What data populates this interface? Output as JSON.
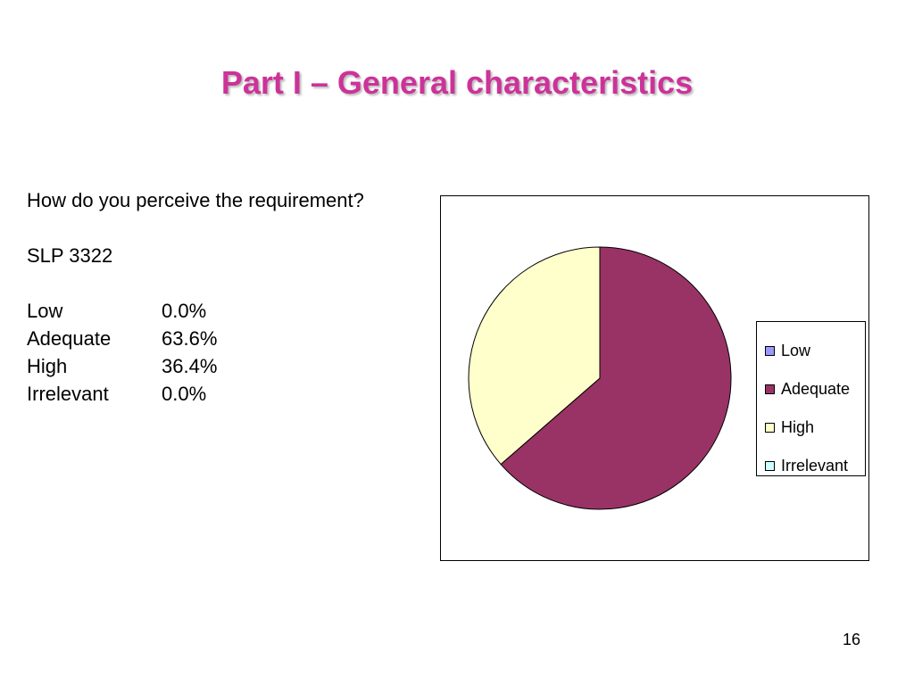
{
  "slide": {
    "title": "Part I – General characteristics",
    "question": "How do you perceive the requirement?",
    "code": "SLP 3322",
    "rows": [
      {
        "label": "Low",
        "value": "0.0%"
      },
      {
        "label": "Adequate",
        "value": "63.6%"
      },
      {
        "label": "High",
        "value": "36.4%"
      },
      {
        "label": "Irrelevant",
        "value": "0.0%"
      }
    ],
    "page_number": "16"
  },
  "colors": {
    "title": "#cc3399",
    "Low": "#9999ff",
    "Adequate": "#993366",
    "High": "#ffffcc",
    "Irrelevant": "#ccffff"
  },
  "chart_data": {
    "type": "pie",
    "categories": [
      "Low",
      "Adequate",
      "High",
      "Irrelevant"
    ],
    "values": [
      0.0,
      63.6,
      36.4,
      0.0
    ],
    "start_angle_deg": 0,
    "direction": "clockwise",
    "legend": {
      "placement": "right",
      "entries": [
        "Low",
        "Adequate",
        "High",
        "Irrelevant"
      ]
    }
  }
}
